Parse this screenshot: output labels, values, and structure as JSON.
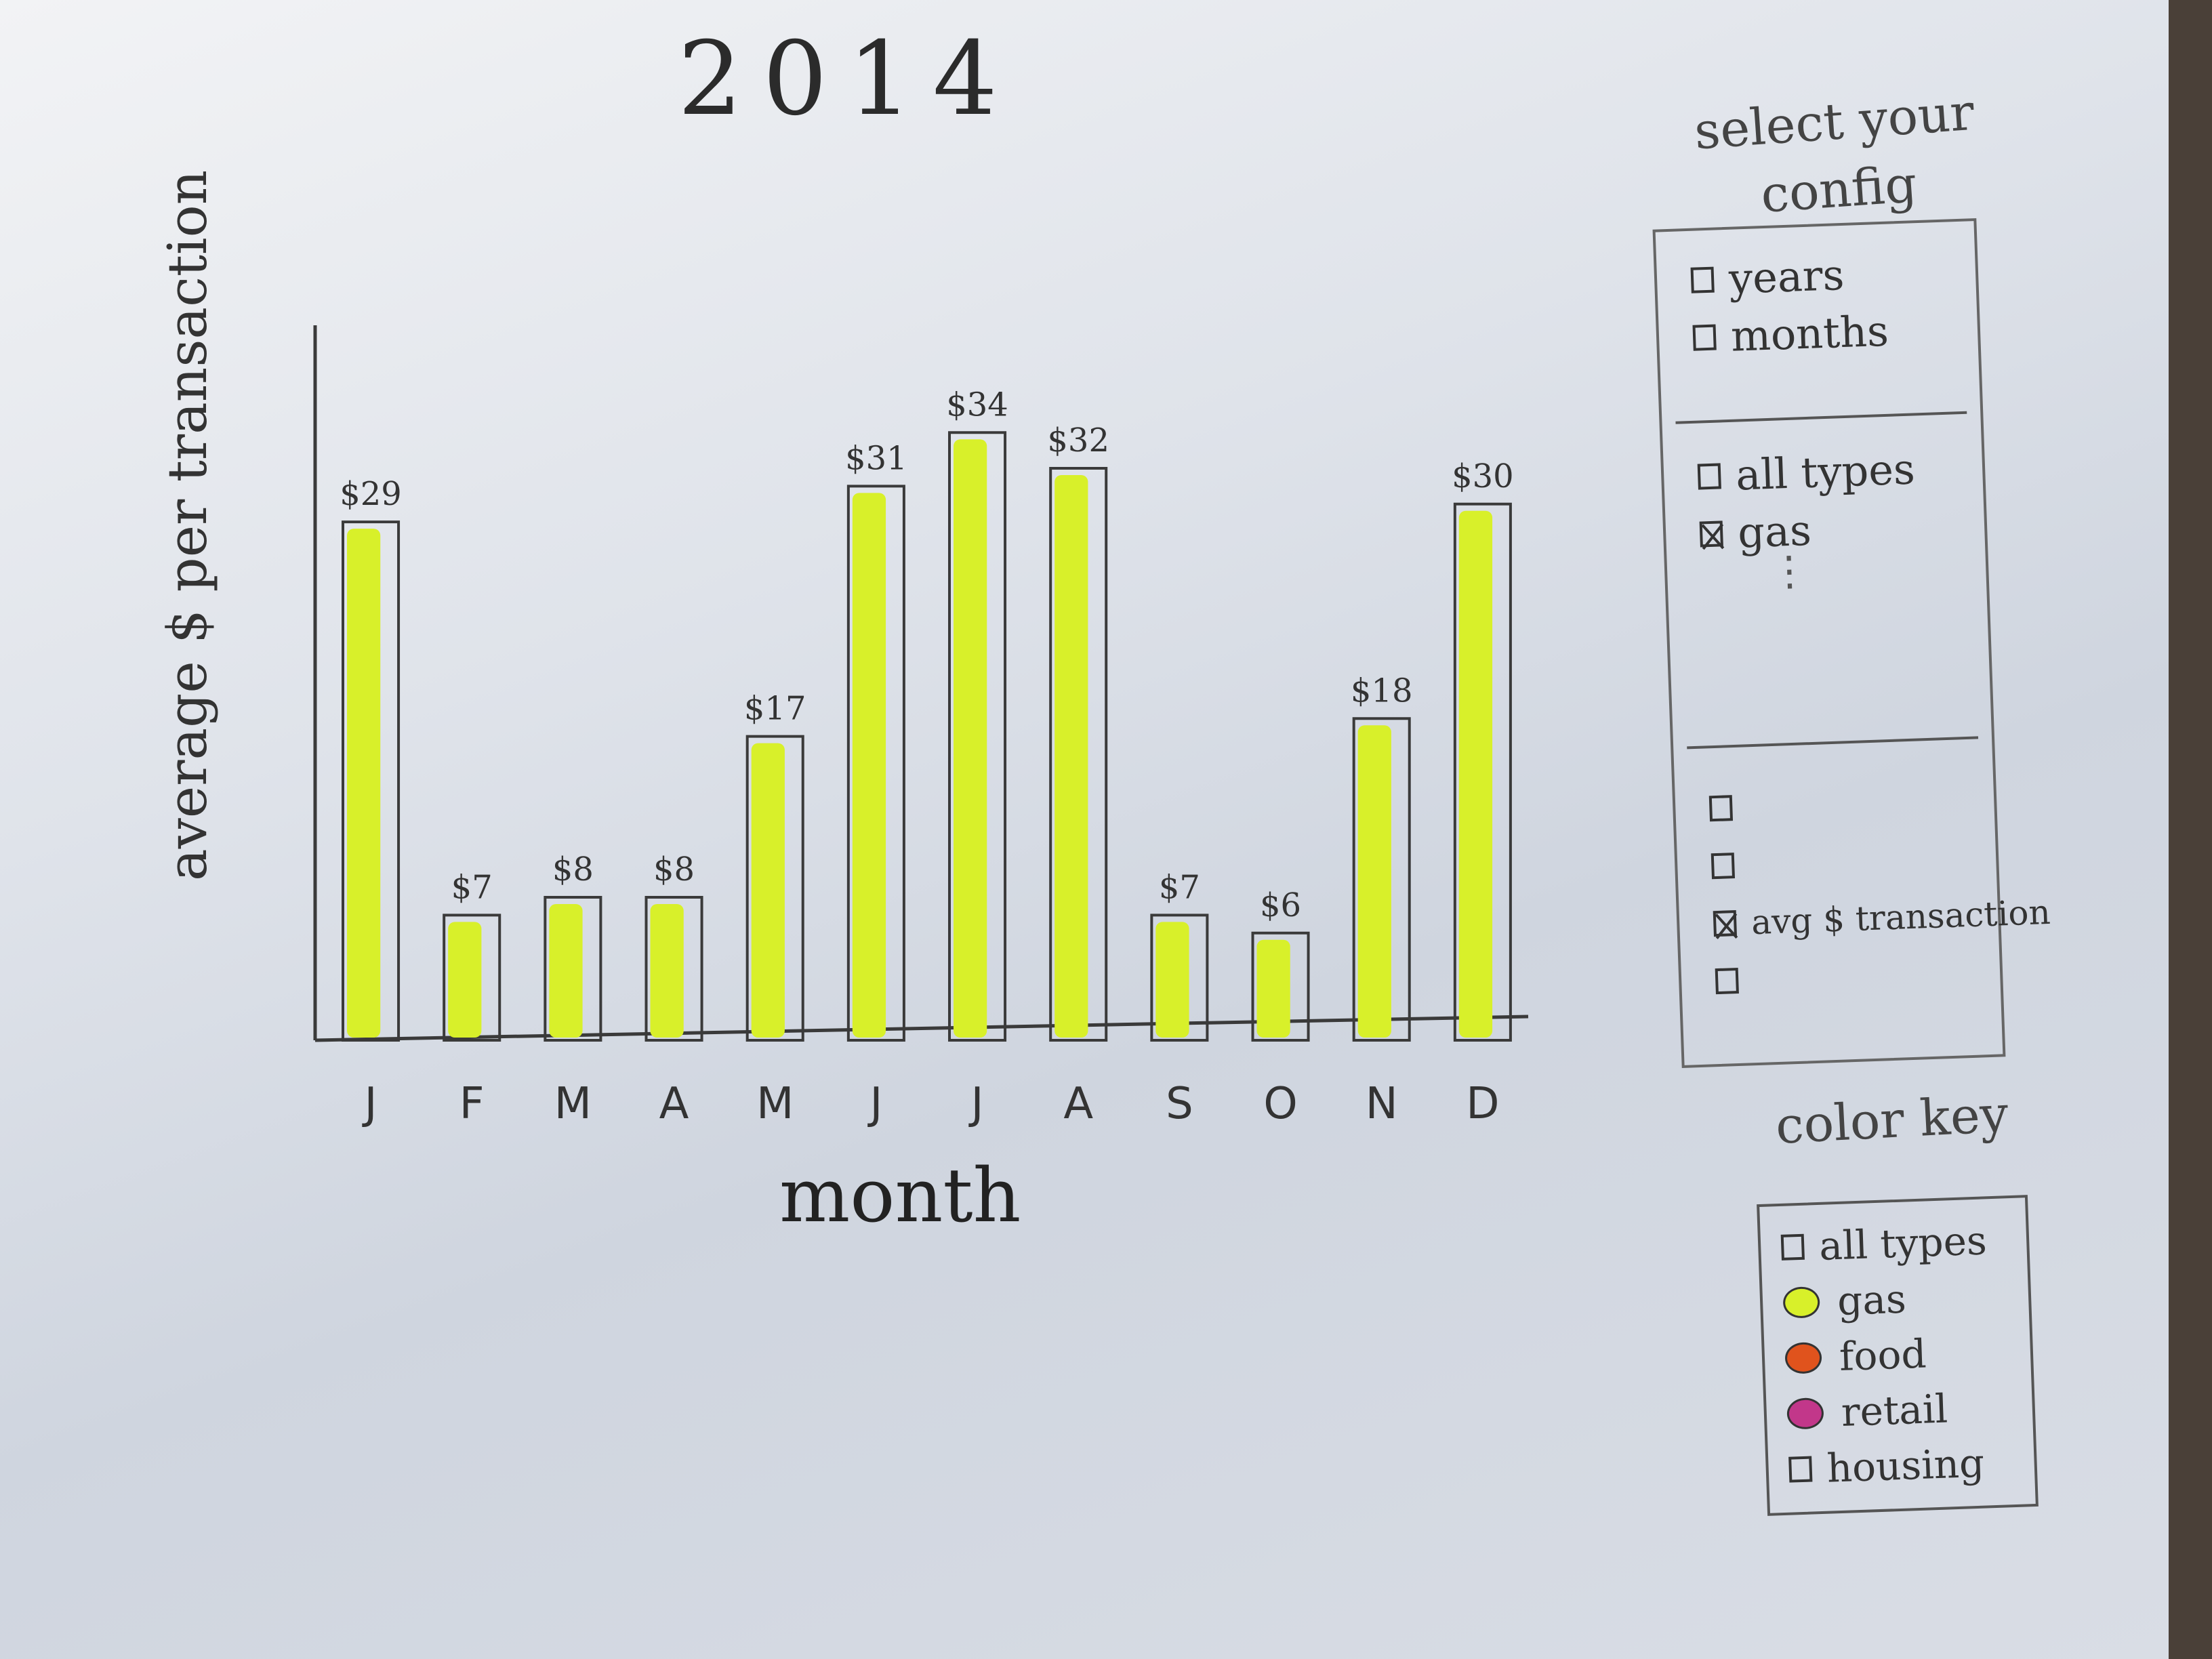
{
  "title": "2014",
  "colors": {
    "gas": "#d8f02a",
    "food": "#e0531d",
    "retail": "#c2378a",
    "outline": "#3a3a3a"
  },
  "config": {
    "heading": "select your config",
    "time_options": [
      {
        "label": "years",
        "checked": false
      },
      {
        "label": "months",
        "checked": false
      }
    ],
    "type_options": [
      {
        "label": "all types",
        "checked": false
      },
      {
        "label": "gas",
        "checked": true
      }
    ],
    "more": "⋮",
    "metric_options": [
      {
        "label": "",
        "checked": false
      },
      {
        "label": "",
        "checked": false
      },
      {
        "label": "avg $ transaction",
        "checked": true
      },
      {
        "label": "",
        "checked": false
      }
    ]
  },
  "color_key": {
    "heading": "color key",
    "items": [
      {
        "label": "all types",
        "swatch": "box"
      },
      {
        "label": "gas",
        "swatch": "gas"
      },
      {
        "label": "food",
        "swatch": "food"
      },
      {
        "label": "retail",
        "swatch": "retail"
      },
      {
        "label": "housing",
        "swatch": "box"
      }
    ]
  },
  "chart_data": {
    "type": "bar",
    "title": "2014",
    "xlabel": "month",
    "ylabel": "average $ per transaction",
    "categories": [
      "J",
      "F",
      "M",
      "A",
      "M",
      "J",
      "J",
      "A",
      "S",
      "O",
      "N",
      "D"
    ],
    "series": [
      {
        "name": "gas",
        "values": [
          29,
          7,
          8,
          8,
          17,
          31,
          34,
          32,
          7,
          6,
          18,
          30
        ]
      }
    ],
    "data_labels": [
      "$29",
      "$7",
      "$8",
      "$8",
      "$17",
      "$31",
      "$34",
      "$32",
      "$7",
      "$6",
      "$18",
      "$30"
    ],
    "ylim": [
      0,
      40
    ],
    "grid": false
  }
}
